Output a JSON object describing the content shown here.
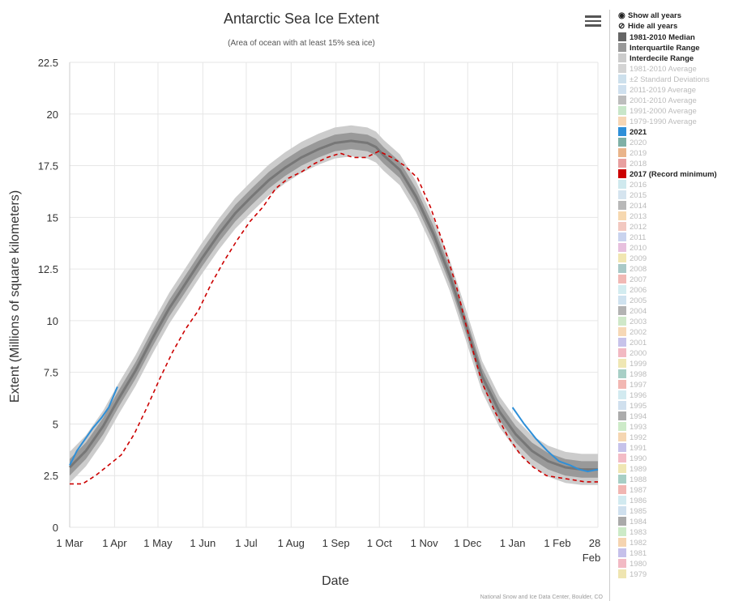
{
  "chart_data": {
    "type": "line",
    "title": "Antarctic Sea Ice Extent",
    "subtitle": "(Area of ocean with at least 15% sea ice)",
    "xlabel": "Date",
    "ylabel": "Extent (Millions of square kilometers)",
    "ylim": [
      0,
      22.5
    ],
    "y_ticks": [
      "0",
      "2.5",
      "5",
      "7.5",
      "10",
      "12.5",
      "15",
      "17.5",
      "20",
      "22.5"
    ],
    "x_ticks": [
      "1 Mar",
      "1 Apr",
      "1 May",
      "1 Jun",
      "1 Jul",
      "1 Aug",
      "1 Sep",
      "1 Oct",
      "1 Nov",
      "1 Dec",
      "1 Jan",
      "1 Feb",
      "28"
    ],
    "x_tick_extra": "Feb",
    "grid": true,
    "legend_position": "right",
    "x_day_of_year_from_1_Mar": [
      0,
      15,
      31,
      45,
      61,
      76,
      92,
      107,
      122,
      138,
      153,
      168,
      184,
      199,
      214,
      230,
      245,
      260,
      275,
      283,
      290,
      305,
      320,
      336,
      351,
      366,
      381,
      397,
      412,
      427,
      442,
      458,
      473,
      488,
      503,
      519,
      534,
      549,
      565,
      580,
      595,
      610,
      625,
      641,
      656,
      671,
      686,
      702,
      717,
      732
    ],
    "series": [
      {
        "name": "1981-2010 Median",
        "color": "#777777",
        "values": [
          2.9,
          3.7,
          4.9,
          6.2,
          7.6,
          9.1,
          10.6,
          11.8,
          13.0,
          14.2,
          15.2,
          16.0,
          16.8,
          17.4,
          17.9,
          18.3,
          18.6,
          18.7,
          18.6,
          18.4,
          18.0,
          17.3,
          16.0,
          14.2,
          12.2,
          9.8,
          7.3,
          5.6,
          4.5,
          3.7,
          3.2,
          2.9,
          2.8,
          2.8,
          null,
          null,
          null,
          null,
          null,
          null,
          null,
          null,
          null,
          null,
          null,
          null,
          null,
          null,
          null,
          null
        ]
      },
      {
        "name": "2017 (Record minimum)",
        "color": "#cc0000",
        "values": [
          2.1,
          2.1,
          2.5,
          3.0,
          3.5,
          4.5,
          5.8,
          7.2,
          8.5,
          9.6,
          10.5,
          11.8,
          12.9,
          13.9,
          14.8,
          15.5,
          16.4,
          16.9,
          17.2,
          17.6,
          17.9,
          18.1,
          17.9,
          17.9,
          18.2,
          17.9,
          17.5,
          16.9,
          15.5,
          13.7,
          11.7,
          9.2,
          7.0,
          5.6,
          4.4,
          3.5,
          2.9,
          2.5,
          2.4,
          2.3,
          2.2,
          2.2,
          null,
          null,
          null,
          null,
          null,
          null,
          null,
          null
        ]
      },
      {
        "name": "2021",
        "color": "#2e8fd8",
        "values": [
          3.0,
          3.7,
          4.3,
          4.8,
          5.3,
          5.8,
          6.8,
          5.8,
          5.0,
          4.3,
          3.7,
          3.2,
          3.0,
          2.8,
          2.7,
          2.8
        ]
      }
    ],
    "interquartile_band": {
      "color": "#999999"
    },
    "interdecile_band": {
      "color": "#cccccc"
    }
  },
  "menu": {
    "icon": "hamburger-menu-icon"
  },
  "legend": {
    "show_all": "Show all years",
    "hide_all": "Hide all years",
    "show_icon": "eye-icon",
    "hide_icon": "eye-slash-icon",
    "items": [
      {
        "label": "1981-2010 Median",
        "color": "#666666",
        "style": "bold"
      },
      {
        "label": "Interquartile Range",
        "color": "#999999",
        "style": "bold"
      },
      {
        "label": "Interdecile Range",
        "color": "#cccccc",
        "style": "bold"
      },
      {
        "label": "1981-2010 Average",
        "color": "#d4d4d4",
        "style": "dim"
      },
      {
        "label": "±2 Standard Deviations",
        "color": "#cde0ec",
        "style": "dim"
      },
      {
        "label": "2011-2019 Average",
        "color": "#cfe0ee",
        "style": "dim"
      },
      {
        "label": "2001-2010 Average",
        "color": "#bdbdbd",
        "style": "dim"
      },
      {
        "label": "1991-2000 Average",
        "color": "#c8e6c9",
        "style": "dim"
      },
      {
        "label": "1979-1990 Average",
        "color": "#f6d6b5",
        "style": "dim"
      },
      {
        "label": "2021",
        "color": "#2e8fd8",
        "style": "bold"
      },
      {
        "label": "2020",
        "color": "#7fb0a6",
        "style": "dim"
      },
      {
        "label": "2019",
        "color": "#e9b48a",
        "style": "dim"
      },
      {
        "label": "2018",
        "color": "#e8a0a0",
        "style": "dim"
      },
      {
        "label": "2017 (Record minimum)",
        "color": "#cc0000",
        "style": "bold"
      },
      {
        "label": "2016",
        "color": "#cfe9ee",
        "style": "dim"
      },
      {
        "label": "2015",
        "color": "#d5e4ef",
        "style": "dim"
      },
      {
        "label": "2014",
        "color": "#b8b8b8",
        "style": "dim"
      },
      {
        "label": "2013",
        "color": "#f6d8b0",
        "style": "dim"
      },
      {
        "label": "2012",
        "color": "#f2c8c0",
        "style": "dim"
      },
      {
        "label": "2011",
        "color": "#c9d3ee",
        "style": "dim"
      },
      {
        "label": "2010",
        "color": "#e7c0de",
        "style": "dim"
      },
      {
        "label": "2009",
        "color": "#f1e6b2",
        "style": "dim"
      },
      {
        "label": "2008",
        "color": "#a9c9c7",
        "style": "dim"
      },
      {
        "label": "2007",
        "color": "#f1b9b5",
        "style": "dim"
      },
      {
        "label": "2006",
        "color": "#d3ecf0",
        "style": "dim"
      },
      {
        "label": "2005",
        "color": "#cfe2ef",
        "style": "dim"
      },
      {
        "label": "2004",
        "color": "#b3b3b3",
        "style": "dim"
      },
      {
        "label": "2003",
        "color": "#cfe8c9",
        "style": "dim"
      },
      {
        "label": "2002",
        "color": "#f6d8b6",
        "style": "dim"
      },
      {
        "label": "2001",
        "color": "#c7c3ea",
        "style": "dim"
      },
      {
        "label": "2000",
        "color": "#f2b9c2",
        "style": "dim"
      },
      {
        "label": "1999",
        "color": "#efe7b4",
        "style": "dim"
      },
      {
        "label": "1998",
        "color": "#a8cfc6",
        "style": "dim"
      },
      {
        "label": "1997",
        "color": "#f2b7b2",
        "style": "dim"
      },
      {
        "label": "1996",
        "color": "#d2eaf0",
        "style": "dim"
      },
      {
        "label": "1995",
        "color": "#d0e0ee",
        "style": "dim"
      },
      {
        "label": "1994",
        "color": "#acacac",
        "style": "dim"
      },
      {
        "label": "1993",
        "color": "#cdeac8",
        "style": "dim"
      },
      {
        "label": "1992",
        "color": "#f5d6b2",
        "style": "dim"
      },
      {
        "label": "1991",
        "color": "#c6c2ea",
        "style": "dim"
      },
      {
        "label": "1990",
        "color": "#f3bcc6",
        "style": "dim"
      },
      {
        "label": "1989",
        "color": "#efe6b3",
        "style": "dim"
      },
      {
        "label": "1988",
        "color": "#a7cfc5",
        "style": "dim"
      },
      {
        "label": "1987",
        "color": "#f1b6b2",
        "style": "dim"
      },
      {
        "label": "1986",
        "color": "#d2eaf0",
        "style": "dim"
      },
      {
        "label": "1985",
        "color": "#cfe0ee",
        "style": "dim"
      },
      {
        "label": "1984",
        "color": "#aaaaaa",
        "style": "dim"
      },
      {
        "label": "1983",
        "color": "#cceac7",
        "style": "dim"
      },
      {
        "label": "1982",
        "color": "#f5d4b0",
        "style": "dim"
      },
      {
        "label": "1981",
        "color": "#c5c0ea",
        "style": "dim"
      },
      {
        "label": "1980",
        "color": "#f2bac4",
        "style": "dim"
      },
      {
        "label": "1979",
        "color": "#efe5b1",
        "style": "dim"
      }
    ]
  },
  "credit": "National Snow and Ice Data Center, Boulder, CO"
}
